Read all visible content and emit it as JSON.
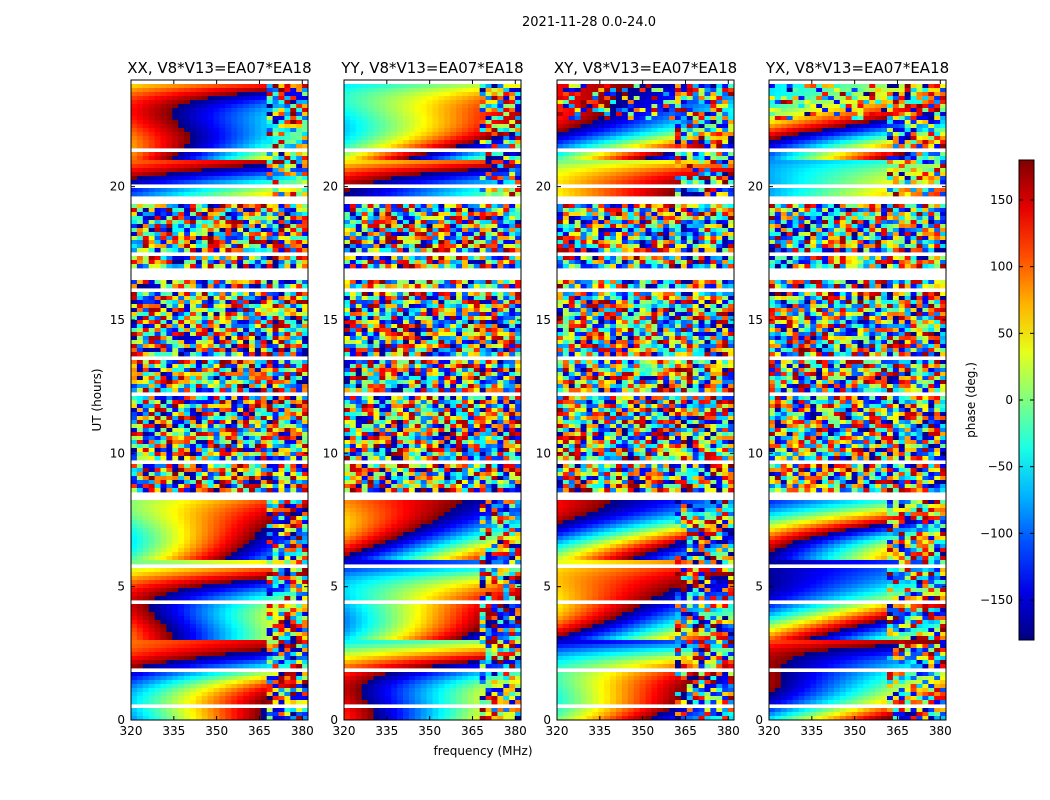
{
  "figure": {
    "suptitle": "2021-11-28 0.0-24.0"
  },
  "chart_data": {
    "type": "heatmap",
    "title": "2021-11-28 0.0-24.0",
    "xlabel": "frequency (MHz)",
    "ylabel": "UT (hours)",
    "xlim": [
      320,
      382
    ],
    "ylim": [
      0,
      24
    ],
    "xticks": [
      320,
      335,
      350,
      365,
      380
    ],
    "yticks": [
      0,
      5,
      10,
      15,
      20
    ],
    "panels": [
      {
        "name": "xx",
        "title": "XX, V8*V13=EA07*EA18"
      },
      {
        "name": "yy",
        "title": "YY, V8*V13=EA07*EA18"
      },
      {
        "name": "xy",
        "title": "XY, V8*V13=EA07*EA18"
      },
      {
        "name": "yx",
        "title": "YX, V8*V13=EA07*EA18"
      }
    ],
    "colorbar": {
      "label": "phase (deg.)",
      "range": [
        -180,
        180
      ],
      "ticks": [
        -150,
        -100,
        -50,
        0,
        50,
        100,
        150
      ],
      "tick_labels": [
        "−150",
        "−100",
        "−50",
        "0",
        "50",
        "100",
        "150"
      ],
      "colormap": "jet"
    }
  }
}
